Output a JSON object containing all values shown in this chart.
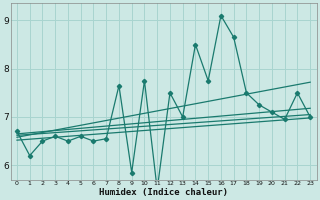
{
  "title": "",
  "xlabel": "Humidex (Indice chaleur)",
  "ylabel": "",
  "bg_color": "#cce8e4",
  "grid_color": "#a8d4cf",
  "line_color": "#1a7a6e",
  "xlim": [
    -0.5,
    23.5
  ],
  "ylim": [
    5.7,
    9.35
  ],
  "yticks": [
    6,
    7,
    8,
    9
  ],
  "xticks": [
    0,
    1,
    2,
    3,
    4,
    5,
    6,
    7,
    8,
    9,
    10,
    11,
    12,
    13,
    14,
    15,
    16,
    17,
    18,
    19,
    20,
    21,
    22,
    23
  ],
  "data_line_x": [
    0,
    1,
    2,
    3,
    4,
    5,
    6,
    7,
    8,
    9,
    10,
    11,
    12,
    13,
    14,
    15,
    16,
    17,
    18,
    19,
    20,
    21,
    22,
    23
  ],
  "data_line_y": [
    6.7,
    6.2,
    6.5,
    6.6,
    6.5,
    6.6,
    6.5,
    6.55,
    7.65,
    5.85,
    7.75,
    5.5,
    7.5,
    7.0,
    8.5,
    7.75,
    9.1,
    8.65,
    7.5,
    7.25,
    7.1,
    6.95,
    7.5,
    7.0
  ],
  "trend_lines": [
    {
      "start": 6.62,
      "end": 7.05
    },
    {
      "start": 6.58,
      "end": 7.72
    },
    {
      "start": 6.65,
      "end": 7.18
    },
    {
      "start": 6.52,
      "end": 6.98
    }
  ]
}
